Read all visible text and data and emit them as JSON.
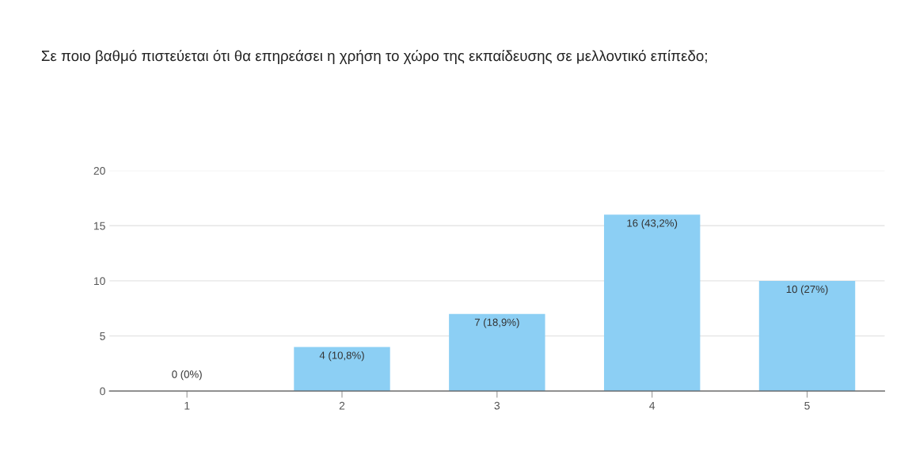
{
  "chart_data": {
    "type": "bar",
    "title": "Σε ποιο βαθμό πιστεύεται ότι θα επηρεάσει η χρήση το χώρο της εκπαίδευσης σε μελλοντικό επίπεδο;",
    "categories": [
      "1",
      "2",
      "3",
      "4",
      "5"
    ],
    "values": [
      0,
      4,
      7,
      16,
      10
    ],
    "value_labels": [
      "0 (0%)",
      "4 (10,8%)",
      "7 (18,9%)",
      "16 (43,2%)",
      "10 (27%)"
    ],
    "color": "#8ccff4",
    "ylim": [
      0,
      20
    ],
    "yticks": [
      0,
      5,
      10,
      15,
      20
    ],
    "grid": "y"
  }
}
